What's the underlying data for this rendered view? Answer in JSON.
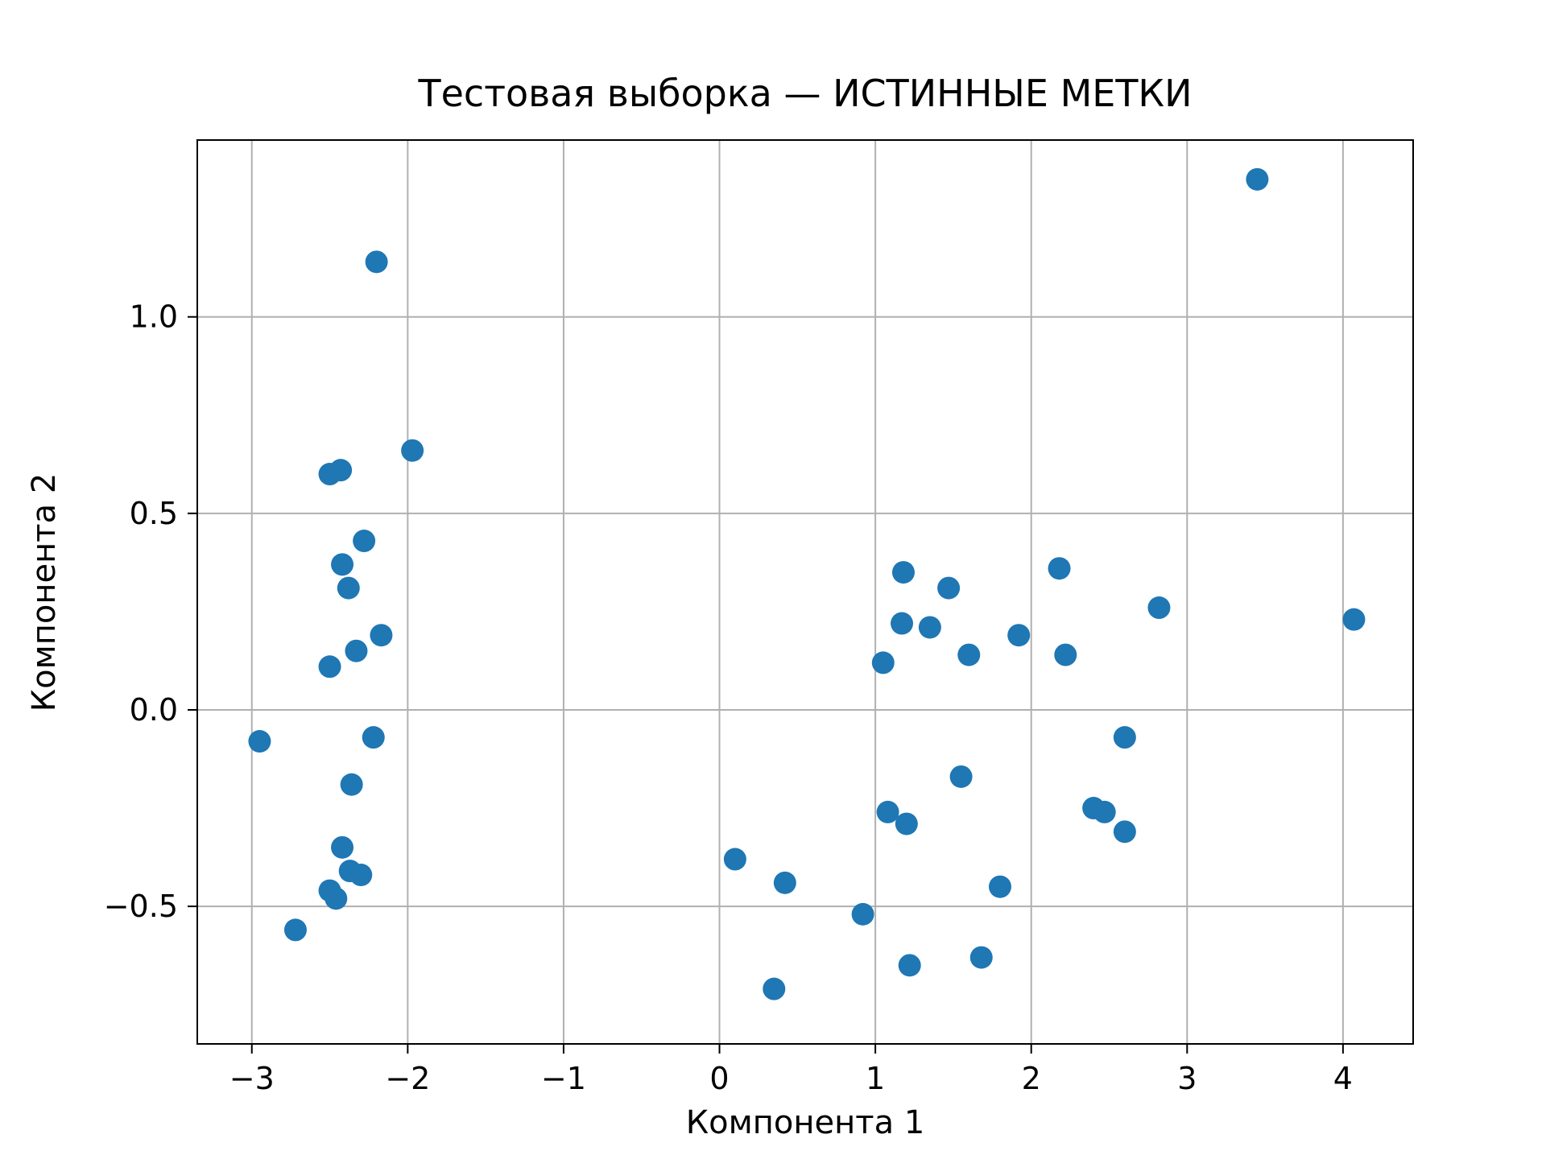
{
  "chart_data": {
    "type": "scatter",
    "title": "Тестовая выборка — ИСТИННЫЕ МЕТКИ",
    "xlabel": "Компонента 1",
    "ylabel": "Компонента 2",
    "xlim": [
      -3.35,
      4.45
    ],
    "ylim": [
      -0.85,
      1.45
    ],
    "grid": true,
    "legend": "none",
    "marker_color": "#1f77b4",
    "grid_color": "#b0b0b0",
    "xtick_values": [
      -3,
      -2,
      -1,
      0,
      1,
      2,
      3,
      4
    ],
    "xtick_labels": [
      "−3",
      "−2",
      "−1",
      "0",
      "1",
      "2",
      "3",
      "4"
    ],
    "ytick_values": [
      -0.5,
      0.0,
      0.5,
      1.0
    ],
    "ytick_labels": [
      "−0.5",
      "0.0",
      "0.5",
      "1.0"
    ],
    "points": [
      {
        "x": -2.95,
        "y": -0.08
      },
      {
        "x": -2.72,
        "y": -0.56
      },
      {
        "x": -2.5,
        "y": 0.6
      },
      {
        "x": -2.43,
        "y": 0.61
      },
      {
        "x": -2.2,
        "y": 1.14
      },
      {
        "x": -1.97,
        "y": 0.66
      },
      {
        "x": -2.28,
        "y": 0.43
      },
      {
        "x": -2.42,
        "y": 0.37
      },
      {
        "x": -2.38,
        "y": 0.31
      },
      {
        "x": -2.5,
        "y": 0.11
      },
      {
        "x": -2.33,
        "y": 0.15
      },
      {
        "x": -2.17,
        "y": 0.19
      },
      {
        "x": -2.22,
        "y": -0.07
      },
      {
        "x": -2.36,
        "y": -0.19
      },
      {
        "x": -2.42,
        "y": -0.35
      },
      {
        "x": -2.37,
        "y": -0.41
      },
      {
        "x": -2.3,
        "y": -0.42
      },
      {
        "x": -2.5,
        "y": -0.46
      },
      {
        "x": -2.46,
        "y": -0.48
      },
      {
        "x": 0.1,
        "y": -0.38
      },
      {
        "x": 0.42,
        "y": -0.44
      },
      {
        "x": 0.35,
        "y": -0.71
      },
      {
        "x": 0.92,
        "y": -0.52
      },
      {
        "x": 1.22,
        "y": -0.65
      },
      {
        "x": 1.68,
        "y": -0.63
      },
      {
        "x": 1.8,
        "y": -0.45
      },
      {
        "x": 1.55,
        "y": -0.17
      },
      {
        "x": 1.08,
        "y": -0.26
      },
      {
        "x": 1.2,
        "y": -0.29
      },
      {
        "x": 1.05,
        "y": 0.12
      },
      {
        "x": 1.17,
        "y": 0.22
      },
      {
        "x": 1.35,
        "y": 0.21
      },
      {
        "x": 1.18,
        "y": 0.35
      },
      {
        "x": 1.47,
        "y": 0.31
      },
      {
        "x": 1.6,
        "y": 0.14
      },
      {
        "x": 1.92,
        "y": 0.19
      },
      {
        "x": 2.18,
        "y": 0.36
      },
      {
        "x": 2.22,
        "y": 0.14
      },
      {
        "x": 2.4,
        "y": -0.25
      },
      {
        "x": 2.47,
        "y": -0.26
      },
      {
        "x": 2.6,
        "y": -0.31
      },
      {
        "x": 2.6,
        "y": -0.07
      },
      {
        "x": 2.82,
        "y": 0.26
      },
      {
        "x": 3.45,
        "y": 1.35
      },
      {
        "x": 4.07,
        "y": 0.23
      }
    ]
  }
}
